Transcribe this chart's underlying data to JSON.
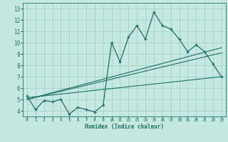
{
  "title": "",
  "xlabel": "Humidex (Indice chaleur)",
  "background_color": "#c5e8e2",
  "grid_color": "#9dccc4",
  "line_color": "#1a7060",
  "xlim": [
    -0.5,
    23.5
  ],
  "ylim": [
    3.5,
    13.5
  ],
  "xticks": [
    0,
    1,
    2,
    3,
    4,
    5,
    6,
    7,
    8,
    9,
    10,
    11,
    12,
    13,
    14,
    15,
    16,
    17,
    18,
    19,
    20,
    21,
    22,
    23
  ],
  "yticks": [
    4,
    5,
    6,
    7,
    8,
    9,
    10,
    11,
    12,
    13
  ],
  "main_data": [
    [
      0,
      5.3
    ],
    [
      1,
      4.1
    ],
    [
      2,
      4.9
    ],
    [
      3,
      4.8
    ],
    [
      4,
      5.0
    ],
    [
      5,
      3.7
    ],
    [
      6,
      4.3
    ],
    [
      7,
      4.1
    ],
    [
      8,
      3.9
    ],
    [
      9,
      4.5
    ],
    [
      10,
      10.0
    ],
    [
      11,
      8.3
    ],
    [
      12,
      10.5
    ],
    [
      13,
      11.5
    ],
    [
      14,
      10.3
    ],
    [
      15,
      12.7
    ],
    [
      16,
      11.5
    ],
    [
      17,
      11.2
    ],
    [
      18,
      10.3
    ],
    [
      19,
      9.2
    ],
    [
      20,
      9.8
    ],
    [
      21,
      9.2
    ],
    [
      22,
      8.1
    ],
    [
      23,
      7.0
    ]
  ],
  "trend_lines": [
    [
      [
        0,
        5.15
      ],
      [
        23,
        7.0
      ]
    ],
    [
      [
        0,
        5.0
      ],
      [
        23,
        9.1
      ]
    ],
    [
      [
        0,
        5.0
      ],
      [
        23,
        9.55
      ]
    ]
  ]
}
